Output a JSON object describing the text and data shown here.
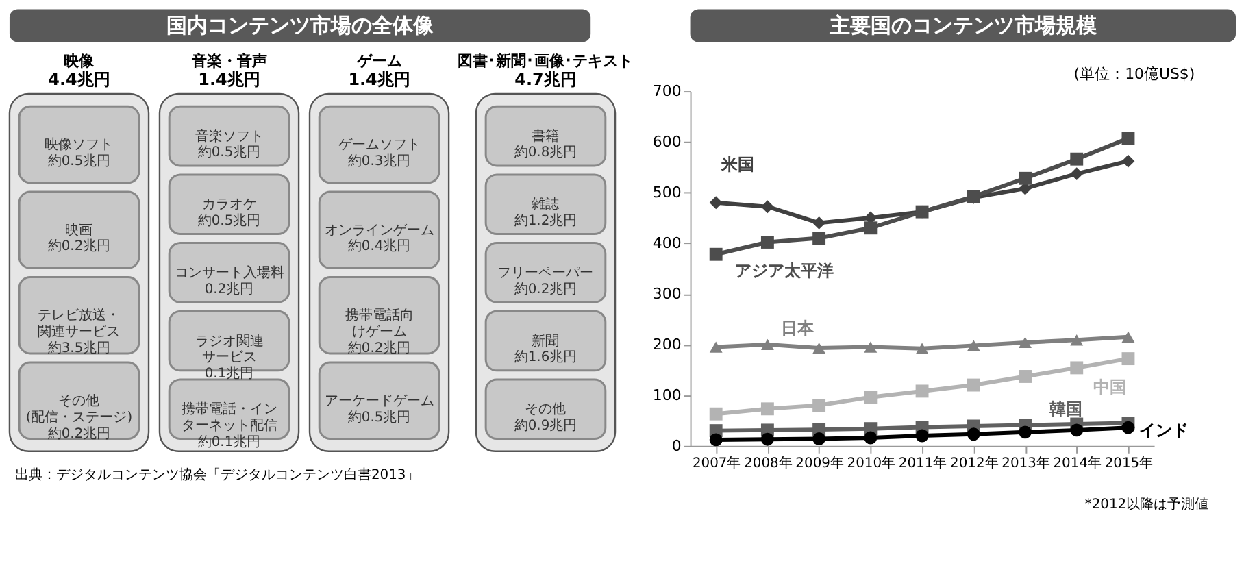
{
  "chart_data": [
    {
      "type": "other",
      "title": "国内コンテンツ市場の全体像",
      "annotations": [
        "出典：デジタルコンテンツ協会「デジタルコンテンツ白書2013」"
      ]
    },
    {
      "type": "other",
      "title": "映像",
      "subtitle": "4.4兆円",
      "categories": [
        "映像ソフト",
        "映画",
        "テレビ放送・関連サービス",
        "その他\n(配信・ステージ)"
      ],
      "value_labels": [
        "約0.5兆円",
        "約0.2兆円",
        "約3.5兆円",
        "約0.2兆円"
      ]
    },
    {
      "type": "other",
      "title": "音楽・音声",
      "subtitle": "1.4兆円",
      "categories": [
        "音楽ソフト",
        "カラオケ",
        "コンサート入場料",
        "ラジオ関連サービス",
        "携帯電話・インターネット配信"
      ],
      "value_labels": [
        "約0.5兆円",
        "約0.5兆円",
        "0.2兆円",
        "0.1兆円",
        "約0.1兆円"
      ]
    },
    {
      "type": "other",
      "title": "ゲーム",
      "subtitle": "1.4兆円",
      "categories": [
        "ゲームソフト",
        "オンラインゲーム",
        "携帯電話向けゲーム",
        "アーケードゲーム"
      ],
      "value_labels": [
        "約0.3兆円",
        "約0.4兆円",
        "約0.2兆円",
        "約0.5兆円"
      ]
    },
    {
      "type": "other",
      "title": "図書･新聞･画像･テキスト",
      "subtitle": "4.7兆円",
      "categories": [
        "書籍",
        "雑誌",
        "フリーペーパー",
        "新聞",
        "その他"
      ],
      "value_labels": [
        "約0.8兆円",
        "約1.2兆円",
        "約0.2兆円",
        "約1.6兆円",
        "約0.9兆円"
      ]
    },
    {
      "type": "line",
      "title": "主要国のコンテンツ市場規模",
      "annotations": [
        "(単位：10億US$)",
        "*2012以降は予測値"
      ],
      "categories": [
        "2007年",
        "2008年",
        "2009年",
        "2010年",
        "2011年",
        "2012年",
        "2013年",
        "2014年",
        "2015年"
      ],
      "ylim": [
        0,
        700
      ],
      "yticks": [
        0,
        100,
        200,
        300,
        400,
        500,
        600,
        700
      ],
      "grid": false,
      "legend": false,
      "series": [
        {
          "name": "米国",
          "color": "#404040",
          "marker": "diamond",
          "values": [
            480,
            472,
            440,
            450,
            462,
            490,
            508,
            537,
            562
          ]
        },
        {
          "name": "アジア太平洋",
          "color": "#4d4d4d",
          "marker": "square",
          "values": [
            378,
            402,
            410,
            430,
            462,
            492,
            528,
            566,
            607
          ]
        },
        {
          "name": "日本",
          "color": "#808080",
          "marker": "triangle",
          "values": [
            195,
            200,
            193,
            195,
            192,
            198,
            204,
            209,
            215
          ]
        },
        {
          "name": "中国",
          "color": "#b3b3b3",
          "marker": "square",
          "values": [
            63,
            73,
            80,
            96,
            108,
            120,
            137,
            154,
            172
          ]
        },
        {
          "name": "韓国",
          "color": "#606060",
          "marker": "square",
          "values": [
            30,
            31,
            32,
            34,
            37,
            39,
            41,
            43,
            45
          ]
        },
        {
          "name": "インド",
          "color": "#000000",
          "marker": "circle",
          "values": [
            12,
            13,
            14,
            16,
            20,
            23,
            27,
            31,
            36
          ]
        }
      ]
    }
  ]
}
